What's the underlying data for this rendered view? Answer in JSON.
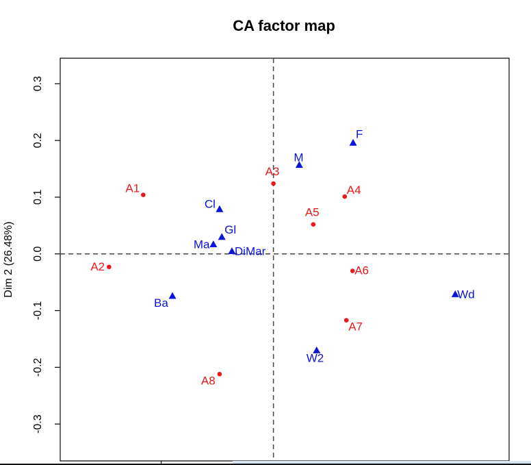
{
  "chart_data": {
    "type": "scatter",
    "title": "CA factor map",
    "ylabel": "Dim 2 (26.48%)",
    "xlabel": "",
    "xlim": [
      -0.38,
      0.42
    ],
    "ylim": [
      -0.365,
      0.345
    ],
    "yticks": [
      -0.3,
      -0.2,
      -0.1,
      0.0,
      0.1,
      0.2,
      0.3
    ],
    "ytick_labels": [
      "-0.3",
      "-0.2",
      "-0.1",
      "0.0",
      "0.1",
      "0.2",
      "0.3"
    ],
    "xticks": [
      -0.2,
      0.0,
      0.2,
      0.4
    ],
    "grid": false,
    "reference_lines": {
      "x": 0,
      "y": 0,
      "style": "dashed"
    },
    "series": [
      {
        "marker": "circle",
        "color": "#e8191b",
        "points": [
          {
            "label": "A1",
            "x": -0.232,
            "y": 0.104
          },
          {
            "label": "A2",
            "x": -0.293,
            "y": -0.023
          },
          {
            "label": "A3",
            "x": 0.0,
            "y": 0.124
          },
          {
            "label": "A4",
            "x": 0.127,
            "y": 0.101
          },
          {
            "label": "A5",
            "x": 0.071,
            "y": 0.052
          },
          {
            "label": "A6",
            "x": 0.141,
            "y": -0.03
          },
          {
            "label": "A7",
            "x": 0.13,
            "y": -0.117
          },
          {
            "label": "A8",
            "x": -0.096,
            "y": -0.212
          }
        ]
      },
      {
        "marker": "triangle",
        "color": "#0a14d8",
        "points": [
          {
            "label": "F",
            "x": 0.142,
            "y": 0.196
          },
          {
            "label": "M",
            "x": 0.046,
            "y": 0.157
          },
          {
            "label": "Cl",
            "x": -0.096,
            "y": 0.079
          },
          {
            "label": "Gl",
            "x": -0.092,
            "y": 0.03
          },
          {
            "label": "Ma",
            "x": -0.107,
            "y": 0.017
          },
          {
            "label": "DiMar",
            "x": -0.074,
            "y": 0.005
          },
          {
            "label": "Ba",
            "x": -0.18,
            "y": -0.074
          },
          {
            "label": "W2",
            "x": 0.077,
            "y": -0.17
          },
          {
            "label": "Wd",
            "x": 0.324,
            "y": -0.071
          }
        ]
      }
    ]
  }
}
